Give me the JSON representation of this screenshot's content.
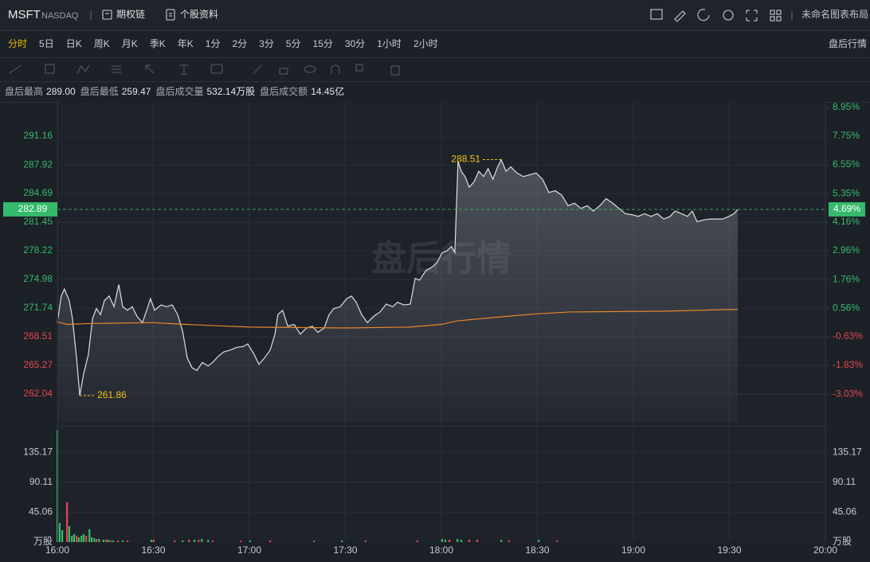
{
  "header": {
    "symbol": "MSFT",
    "exchange": "NASDAQ",
    "links": [
      "期权链",
      "个股资料"
    ],
    "layout_name": "未命名图表布局"
  },
  "tabs": {
    "items": [
      "分时",
      "5日",
      "日K",
      "周K",
      "月K",
      "季K",
      "年K",
      "1分",
      "2分",
      "3分",
      "5分",
      "15分",
      "30分",
      "1小时",
      "2小时"
    ],
    "active": 0,
    "right_label": "盘后行情"
  },
  "stats": [
    {
      "label": "盘后最高",
      "value": "289.00"
    },
    {
      "label": "盘后最低",
      "value": "259.47"
    },
    {
      "label": "盘后成交量",
      "value": "532.14万股"
    },
    {
      "label": "盘后成交额",
      "value": "14.45亿"
    }
  ],
  "chart_data": {
    "type": "line",
    "watermark": "盘后行情",
    "xlim": [
      0,
      240
    ],
    "xticks": [
      {
        "value": 0,
        "label": "16:00"
      },
      {
        "value": 30,
        "label": "16:30"
      },
      {
        "value": 60,
        "label": "17:00"
      },
      {
        "value": 90,
        "label": "17:30"
      },
      {
        "value": 120,
        "label": "18:00"
      },
      {
        "value": 150,
        "label": "18:30"
      },
      {
        "value": 180,
        "label": "19:00"
      },
      {
        "value": 210,
        "label": "19:30"
      },
      {
        "value": 240,
        "label": "20:00"
      }
    ],
    "ylim": [
      258.89,
      295.03
    ],
    "yticks": [
      291.16,
      287.92,
      284.69,
      281.45,
      278.22,
      274.98,
      271.74,
      268.51,
      265.27,
      262.04
    ],
    "y2lim": [
      -4.19,
      9.18
    ],
    "y2ticks": [
      {
        "value": 8.95,
        "label": "8.95%"
      },
      {
        "value": 7.75,
        "label": "7.75%"
      },
      {
        "value": 6.55,
        "label": "6.55%"
      },
      {
        "value": 5.35,
        "label": "5.35%"
      },
      {
        "value": 4.16,
        "label": "4.16%"
      },
      {
        "value": 2.96,
        "label": "2.96%"
      },
      {
        "value": 1.76,
        "label": "1.76%"
      },
      {
        "value": 0.56,
        "label": "0.56%"
      },
      {
        "value": -0.63,
        "label": "-0.63%"
      },
      {
        "value": -1.83,
        "label": "-1.83%"
      },
      {
        "value": -3.03,
        "label": "-3.03%"
      }
    ],
    "grid": true,
    "up_color": "#35b96b",
    "down_color": "#e5484d",
    "series": [
      {
        "color": "#dedede",
        "x": [
          0,
          1.2,
          2.2,
          3.7,
          4.7,
          6,
          7,
          8.2,
          9.7,
          11,
          12.2,
          13.5,
          14.7,
          16.2,
          17.7,
          19.2,
          20.4,
          21.9,
          23.4,
          24.9,
          26.6,
          28.1,
          29.1,
          30.4,
          32.4,
          34.1,
          35.9,
          37.6,
          39.1,
          40.6,
          42.1,
          43.6,
          45.3,
          47.1,
          48.5,
          50.3,
          52,
          54,
          56,
          58,
          59.5,
          61.5,
          63,
          64.7,
          66.5,
          68,
          68.9,
          70.4,
          72,
          74,
          75.9,
          77.9,
          79.7,
          81.4,
          83.4,
          84.9,
          86.4,
          88.4,
          90.4,
          91.9,
          93.4,
          95.1,
          96.9,
          98.8,
          100.8,
          102.8,
          104.8,
          106.3,
          108.3,
          110.3,
          111.8,
          113.2,
          115.2,
          117.2,
          118.7,
          120.2,
          121.7,
          123.2,
          124.2,
          125.2,
          126.2,
          127.4,
          128.7,
          130.2,
          131.7,
          133.2,
          134.6,
          136.1,
          137.6,
          138.7,
          140.2,
          141.7,
          143.6,
          145.6,
          147.6,
          149.6,
          151.6,
          153.6,
          155.6,
          157.6,
          159.6,
          161.6,
          163.6,
          165.6,
          167.5,
          169.5,
          171.5,
          173.5,
          175.5,
          177.5,
          179.5,
          181.5,
          183.5,
          185.5,
          187.5,
          189.5,
          191.5,
          193,
          195,
          196.9,
          198.4,
          199.9,
          201.9,
          203.9,
          205.9,
          207.9,
          209.9,
          211.4,
          212.6
        ],
        "values": [
          270.1,
          273.1,
          273.9,
          272.6,
          270.6,
          266.1,
          261.86,
          264.3,
          266.5,
          270.6,
          271.7,
          271.0,
          272.6,
          273.1,
          271.9,
          274.4,
          271.9,
          271.5,
          271.9,
          270.8,
          270.1,
          271.7,
          272.8,
          271.5,
          272.1,
          271.9,
          272.1,
          271.0,
          269.2,
          266.1,
          265.0,
          264.7,
          265.6,
          265.2,
          265.6,
          266.3,
          266.8,
          267.0,
          267.3,
          267.4,
          267.7,
          266.5,
          265.4,
          266.1,
          267.0,
          268.8,
          271.0,
          271.5,
          269.7,
          269.9,
          268.8,
          269.5,
          269.7,
          269.0,
          269.5,
          271.0,
          271.7,
          271.9,
          272.8,
          273.1,
          272.4,
          271.0,
          270.1,
          270.8,
          271.3,
          272.2,
          271.9,
          272.4,
          272.1,
          272.2,
          275.1,
          274.9,
          276.0,
          276.4,
          276.9,
          278.0,
          278.2,
          278.7,
          278.0,
          288.3,
          287.2,
          286.6,
          285.4,
          286.0,
          287.2,
          286.6,
          287.5,
          286.3,
          287.7,
          288.51,
          287.2,
          287.7,
          287.0,
          286.6,
          286.8,
          287.0,
          286.3,
          284.8,
          285.0,
          284.5,
          283.3,
          283.6,
          283.0,
          283.3,
          282.7,
          283.3,
          284.1,
          283.6,
          283.0,
          282.4,
          282.3,
          282.1,
          282.4,
          282.1,
          282.4,
          281.8,
          282.1,
          282.7,
          282.4,
          282.1,
          282.7,
          281.5,
          281.7,
          281.8,
          281.8,
          281.8,
          282.1,
          282.4,
          282.89
        ]
      },
      {
        "color": "#e8872a",
        "x": [
          0,
          3,
          10,
          30,
          40,
          60,
          90,
          110,
          120,
          125,
          140,
          150,
          160,
          190,
          212.6
        ],
        "values": [
          270.2,
          269.9,
          270.0,
          270.1,
          269.9,
          269.6,
          269.5,
          269.6,
          269.9,
          270.3,
          270.8,
          271.1,
          271.3,
          271.4,
          271.6
        ]
      }
    ],
    "annotations": [
      {
        "x": 138.7,
        "value": 288.51
      },
      {
        "x": 7,
        "value": 261.86
      }
    ],
    "annotation_color": "#f0c419",
    "last": {
      "value": 282.89,
      "change": {
        "value": 4.69,
        "label": "4.69%"
      }
    },
    "volume": {
      "type": "bar",
      "unit": "万股",
      "ylim": [
        0,
        168.8
      ],
      "yticks": [
        135.17,
        90.11,
        45.06
      ],
      "series": [
        {
          "color": "#35b96b",
          "x": [
            0,
            0.7,
            1.5,
            3.7,
            4.5,
            5.2,
            6.7,
            7.5,
            8.2,
            10,
            10.7,
            11.5,
            13,
            14.4,
            15.9,
            17.4,
            20.4,
            29.4,
            39.1,
            42.8,
            45.1,
            47.1,
            60.2,
            88.9,
            120.2,
            121.2,
            125,
            126.2,
            138.7,
            150.4
          ],
          "values": [
            168,
            28.8,
            18,
            24,
            9.6,
            12,
            7.2,
            9.6,
            12,
            19.2,
            7.2,
            6,
            4.8,
            3.6,
            3.6,
            2.4,
            2.4,
            3.6,
            2.4,
            3.6,
            4.8,
            3.6,
            2.4,
            2.4,
            4.8,
            3.6,
            4.8,
            3.6,
            3.6,
            3.6
          ]
        },
        {
          "color": "#e5484d",
          "x": [
            3,
            6,
            9,
            12.2,
            15.2,
            16.7,
            18.9,
            21.9,
            30.1,
            36.6,
            41.1,
            44.1,
            48.5,
            57.3,
            66.5,
            80.2,
            96.3,
            112.5,
            122.5,
            128.7,
            131.2,
            141.1,
            156.1
          ],
          "values": [
            60,
            9.6,
            9.6,
            4.8,
            3.6,
            2.4,
            2.4,
            2.4,
            3.6,
            2.4,
            3.6,
            3.6,
            2.4,
            2.4,
            2.4,
            2.4,
            2.4,
            2.4,
            3.6,
            3.6,
            3.6,
            2.4,
            2.4
          ]
        }
      ]
    }
  }
}
